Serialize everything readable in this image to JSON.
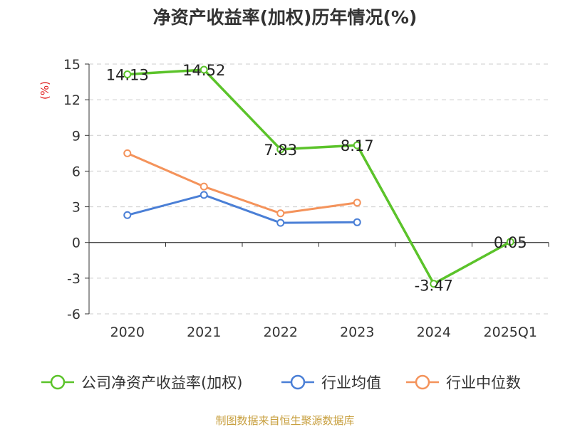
{
  "chart_data": {
    "type": "line",
    "title": "净资产收益率(加权)历年情况(%)",
    "ylabel": "(%)",
    "xlabel": "",
    "categories": [
      "2020",
      "2021",
      "2022",
      "2023",
      "2024",
      "2025Q1"
    ],
    "ylim": [
      -6,
      15
    ],
    "yticks": [
      15,
      12,
      9,
      6,
      3,
      0,
      -3,
      -6
    ],
    "grid": true,
    "legend_position": "bottom",
    "series": [
      {
        "name": "公司净资产收益率(加权)",
        "color": "#5bc32a",
        "show_labels": true,
        "values": [
          14.13,
          14.52,
          7.83,
          8.17,
          -3.47,
          0.05
        ],
        "labels": [
          "14.13",
          "14.52",
          "7.83",
          "8.17",
          "-3.47",
          "0.05"
        ]
      },
      {
        "name": "行业均值",
        "color": "#4a7fd6",
        "show_labels": false,
        "values": [
          2.3,
          4.0,
          1.65,
          1.7,
          null,
          null
        ]
      },
      {
        "name": "行业中位数",
        "color": "#f4935b",
        "show_labels": false,
        "values": [
          7.5,
          4.7,
          2.45,
          3.35,
          null,
          null
        ]
      }
    ]
  },
  "footer": {
    "source": "制图数据来自恒生聚源数据库"
  }
}
